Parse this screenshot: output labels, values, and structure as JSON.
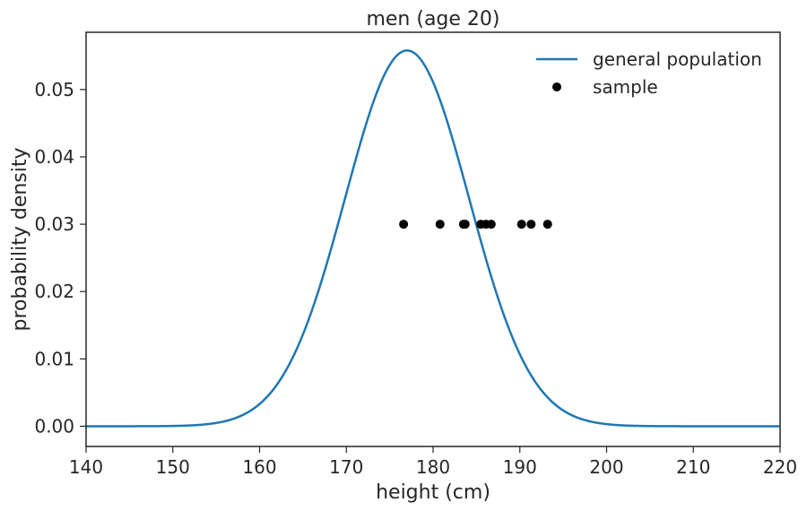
{
  "chart_data": {
    "type": "line",
    "title": "men (age 20)",
    "xlabel": "height (cm)",
    "ylabel": "probability density",
    "xlim": [
      140,
      220
    ],
    "ylim": [
      -0.003,
      0.0585
    ],
    "xticks": [
      140,
      150,
      160,
      170,
      180,
      190,
      200,
      210,
      220
    ],
    "xtick_labels": [
      "140",
      "150",
      "160",
      "170",
      "180",
      "190",
      "200",
      "210",
      "220"
    ],
    "yticks": [
      0,
      0.01,
      0.02,
      0.03,
      0.04,
      0.05
    ],
    "ytick_labels": [
      "0.00",
      "0.01",
      "0.02",
      "0.03",
      "0.04",
      "0.05"
    ],
    "grid": false,
    "legend_position": "top-right",
    "series": [
      {
        "name": "general population",
        "kind": "normal-pdf",
        "mean": 177,
        "std": 7.15,
        "color": "#1f77b4"
      },
      {
        "name": "sample",
        "kind": "scatter",
        "color": "#000000",
        "x": [
          176.6,
          180.8,
          183.5,
          183.7,
          185.5,
          186.1,
          186.7,
          190.2,
          191.3,
          193.2
        ],
        "y": [
          0.03,
          0.03,
          0.03,
          0.03,
          0.03,
          0.03,
          0.03,
          0.03,
          0.03,
          0.03
        ]
      }
    ]
  }
}
